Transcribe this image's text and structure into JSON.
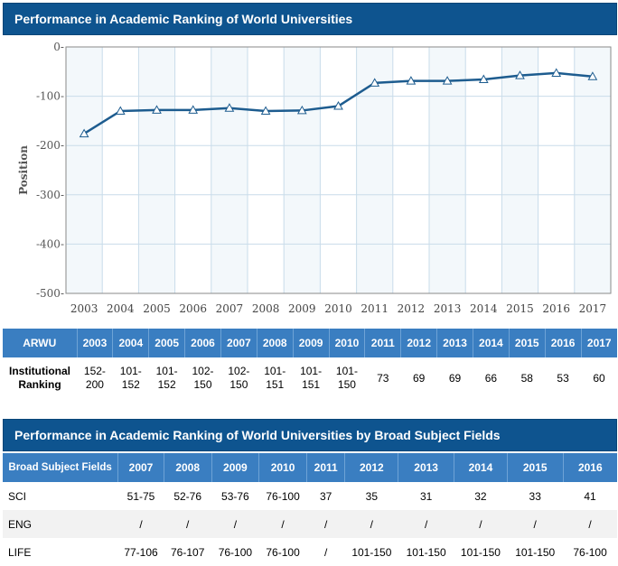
{
  "section1": {
    "title": "Performance in Academic Ranking of World Universities"
  },
  "section2": {
    "title": "Performance in Academic Ranking of World Universities by Broad Subject Fields"
  },
  "chart_data": {
    "type": "line",
    "ylabel": "Position",
    "xlabel": "",
    "x": [
      "2003",
      "2004",
      "2005",
      "2006",
      "2007",
      "2008",
      "2009",
      "2010",
      "2011",
      "2012",
      "2013",
      "2014",
      "2015",
      "2016",
      "2017"
    ],
    "ylim": [
      -500,
      0
    ],
    "yticks": [
      0,
      -100,
      -200,
      -300,
      -400,
      -500
    ],
    "ytick_labels": [
      "0-",
      "-100-",
      "-200-",
      "-300-",
      "-400-",
      "-500-"
    ],
    "series": [
      {
        "values": [
          -176,
          -130,
          -128,
          -128,
          -124,
          -130,
          -129,
          -120,
          -73,
          -69,
          -69,
          -66,
          -58,
          -53,
          -60
        ]
      }
    ],
    "grid": true,
    "colors": {
      "line": "#1d5c8f",
      "marker_fill": "#ffffff",
      "marker_stroke": "#1d5c8f",
      "plot_bg": "#f3f8fb",
      "grid": "#c9dcea"
    }
  },
  "arwu_table": {
    "header_label": "ARWU",
    "years": [
      "2003",
      "2004",
      "2005",
      "2006",
      "2007",
      "2008",
      "2009",
      "2010",
      "2011",
      "2012",
      "2013",
      "2014",
      "2015",
      "2016",
      "2017"
    ],
    "row_label": "Institutional Ranking",
    "values": [
      "152-200",
      "101-152",
      "101-152",
      "102-150",
      "102-150",
      "101-151",
      "101-151",
      "101-150",
      "73",
      "69",
      "69",
      "66",
      "58",
      "53",
      "60"
    ]
  },
  "subject_table": {
    "header_label": "Broad Subject Fields",
    "years": [
      "2007",
      "2008",
      "2009",
      "2010",
      "2011",
      "2012",
      "2013",
      "2014",
      "2015",
      "2016"
    ],
    "rows": [
      {
        "label": "SCI",
        "values": [
          "51-75",
          "52-76",
          "53-76",
          "76-100",
          "37",
          "35",
          "31",
          "32",
          "33",
          "41"
        ]
      },
      {
        "label": "ENG",
        "values": [
          "/",
          "/",
          "/",
          "/",
          "/",
          "/",
          "/",
          "/",
          "/",
          "/"
        ]
      },
      {
        "label": "LIFE",
        "values": [
          "77-106",
          "76-107",
          "76-100",
          "76-100",
          "/",
          "101-150",
          "101-150",
          "101-150",
          "101-150",
          "76-100"
        ]
      }
    ]
  },
  "colors": {
    "header_bg": "#0e548f",
    "table_header_bg": "#3a7ec1"
  }
}
